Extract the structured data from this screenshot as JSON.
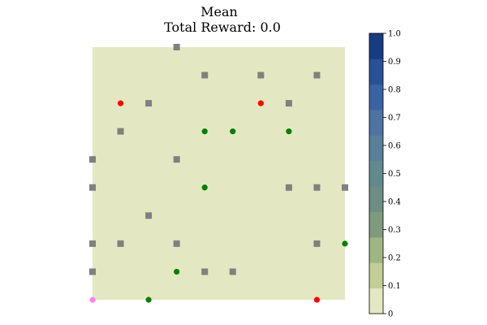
{
  "title_line1": "Mean",
  "title_line2": "Total Reward: 0.0",
  "chart_data": {
    "type": "heatmap",
    "title": "Mean",
    "subtitle": "Total Reward: 0.0",
    "grid_cols": 10,
    "grid_rows": 10,
    "xlim": [
      1,
      10
    ],
    "ylim": [
      1,
      10
    ],
    "cell_value": 0.0,
    "background_color": "#e4e8c2",
    "colorbar": {
      "min": 0,
      "max": 1,
      "ticks": [
        "0",
        "0.1",
        "0.2",
        "0.3",
        "0.4",
        "0.5",
        "0.6",
        "0.7",
        "0.8",
        "0.9",
        "1.0"
      ],
      "levels": [
        "#e4e8c2",
        "#c2cd97",
        "#a0b584",
        "#7f9b7d",
        "#6e8d85",
        "#628a8c",
        "#5a7f98",
        "#4f73a2",
        "#3a63a3",
        "#2a5193",
        "#173c82"
      ]
    },
    "series": [
      {
        "marker": "square",
        "color": "#808080",
        "points": [
          [
            4,
            10
          ],
          [
            5,
            9
          ],
          [
            7,
            9
          ],
          [
            9,
            9
          ],
          [
            3,
            8
          ],
          [
            8,
            8
          ],
          [
            2,
            7
          ],
          [
            1,
            6
          ],
          [
            4,
            6
          ],
          [
            1,
            5
          ],
          [
            8,
            5
          ],
          [
            9,
            5
          ],
          [
            10,
            5
          ],
          [
            3,
            4
          ],
          [
            1,
            3
          ],
          [
            2,
            3
          ],
          [
            4,
            3
          ],
          [
            9,
            3
          ],
          [
            1,
            2
          ],
          [
            5,
            2
          ],
          [
            6,
            2
          ]
        ]
      },
      {
        "marker": "circle",
        "color": "#ff0000",
        "points": [
          [
            2,
            8
          ],
          [
            7,
            8
          ],
          [
            9,
            1
          ]
        ]
      },
      {
        "marker": "circle",
        "color": "#008000",
        "points": [
          [
            5,
            7
          ],
          [
            6,
            7
          ],
          [
            8,
            7
          ],
          [
            5,
            5
          ],
          [
            10,
            3
          ],
          [
            4,
            2
          ],
          [
            3,
            1
          ]
        ]
      },
      {
        "marker": "circle",
        "color": "#ff80ff",
        "points": [
          [
            1,
            1
          ]
        ]
      }
    ]
  }
}
